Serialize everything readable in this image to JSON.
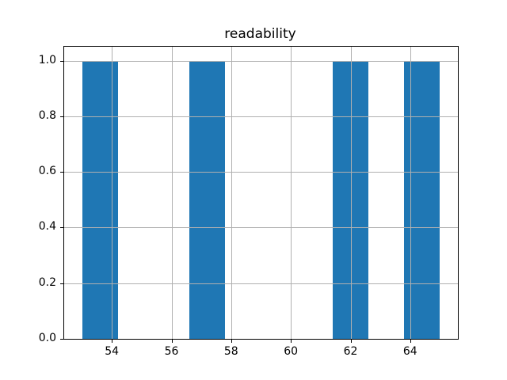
{
  "chart_data": {
    "type": "bar",
    "subtype": "histogram",
    "title": "readability",
    "xlabel": "",
    "ylabel": "",
    "bins": [
      {
        "x0": 53.0,
        "x1": 54.2,
        "count": 1.0
      },
      {
        "x0": 56.6,
        "x1": 57.8,
        "count": 1.0
      },
      {
        "x0": 61.4,
        "x1": 62.6,
        "count": 1.0
      },
      {
        "x0": 63.8,
        "x1": 65.0,
        "count": 1.0
      }
    ],
    "bin_width": 1.2,
    "xlim": [
      52.4,
      65.6
    ],
    "ylim": [
      0,
      1.05
    ],
    "x_ticks": [
      54,
      56,
      58,
      60,
      62,
      64
    ],
    "x_tick_labels": [
      "54",
      "56",
      "58",
      "60",
      "62",
      "64"
    ],
    "y_ticks": [
      0.0,
      0.2,
      0.4,
      0.6,
      0.8,
      1.0
    ],
    "y_tick_labels": [
      "0.0",
      "0.2",
      "0.4",
      "0.6",
      "0.8",
      "1.0"
    ],
    "grid": true,
    "grid_on_top": true,
    "legend": null,
    "bar_color": "#1f77b4",
    "grid_color": "#b0b0b0",
    "axis_color": "#000000",
    "background_color": "#ffffff"
  }
}
